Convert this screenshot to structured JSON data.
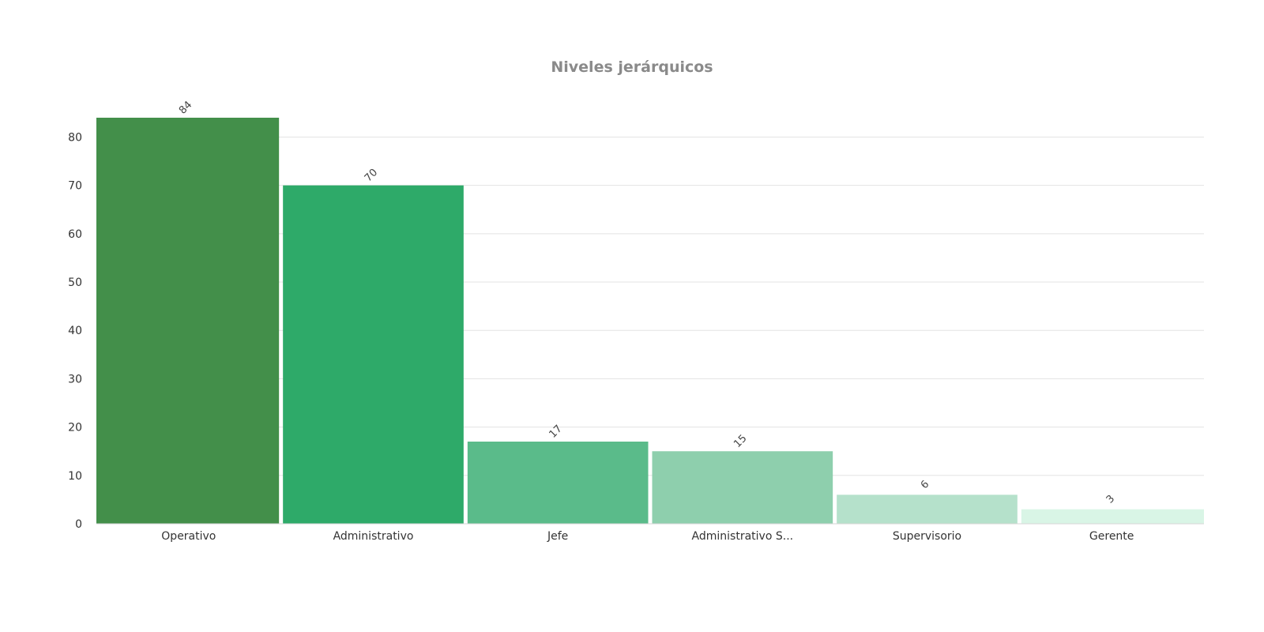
{
  "chart_data": {
    "type": "bar",
    "title": "Niveles jerárquicos",
    "categories": [
      "Operativo",
      "Administrativo",
      "Jefe",
      "Administrativo S...",
      "Supervisorio",
      "Gerente"
    ],
    "values": [
      84,
      70,
      17,
      15,
      6,
      3
    ],
    "colors": [
      "#438f4a",
      "#2eaa69",
      "#5abb8a",
      "#8ecfad",
      "#b5e1cb",
      "#d9f5e6"
    ],
    "xlabel": "",
    "ylabel": "",
    "ylim": [
      0,
      84
    ],
    "yticks": [
      0,
      10,
      20,
      30,
      40,
      50,
      60,
      70,
      80
    ],
    "grid": true,
    "legend": "none"
  }
}
